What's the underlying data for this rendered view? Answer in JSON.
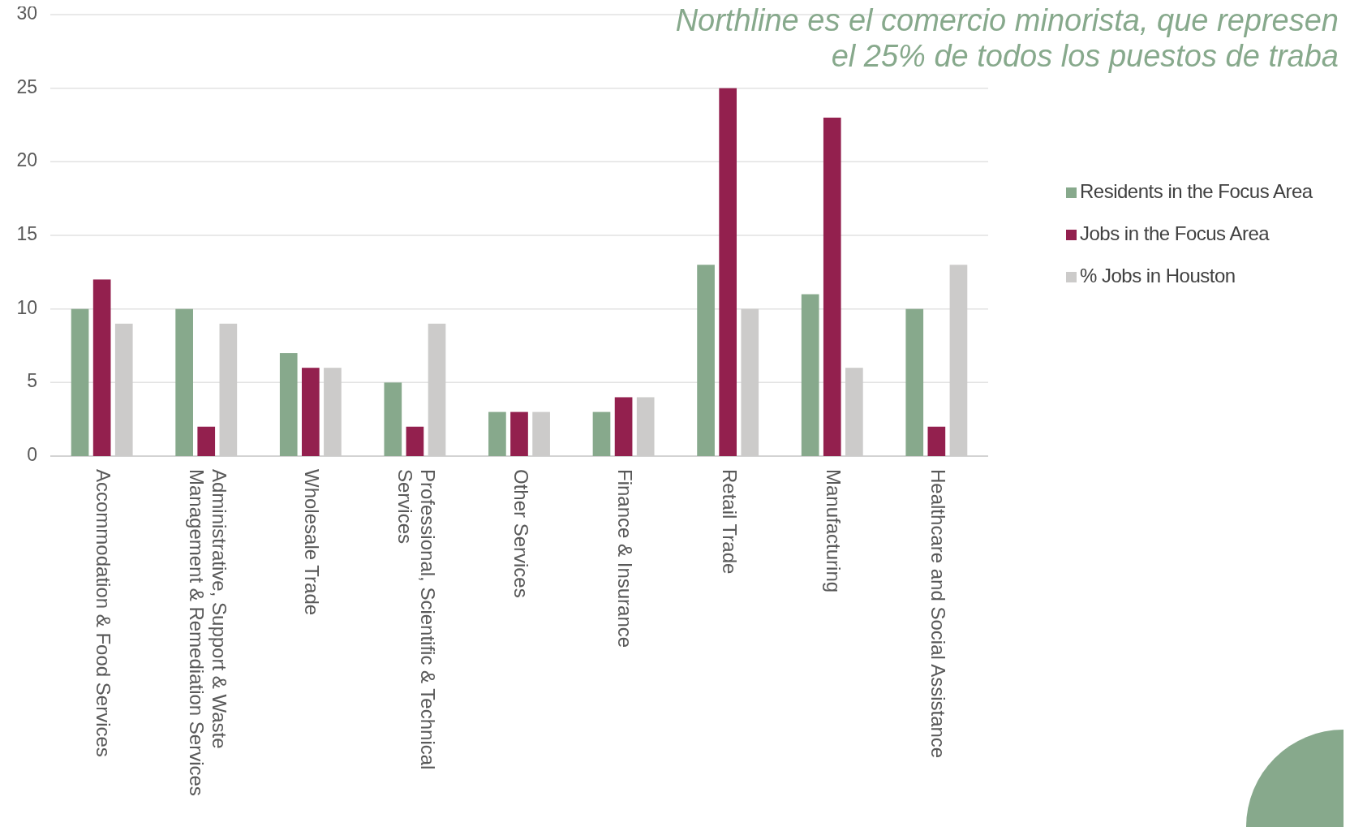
{
  "chart_data": {
    "type": "bar",
    "categories": [
      "Accommodation & Food Services",
      "Administrative, Support & Waste Management & Remediation Services",
      "Wholesale Trade",
      "Professional, Scientific & Technical Services",
      "Other Services",
      "Finance & Insurance",
      "Retail Trade",
      "Manufacturing",
      "Healthcare and Social Assistance"
    ],
    "series": [
      {
        "name": "Residents in the Focus Area",
        "color": "#87a98c",
        "values": [
          10,
          10,
          7,
          5,
          3,
          3,
          13,
          11,
          10
        ]
      },
      {
        "name": "Jobs in the Focus Area",
        "color": "#93204e",
        "values": [
          12,
          2,
          6,
          2,
          3,
          4,
          25,
          23,
          2
        ]
      },
      {
        "name": "% Jobs in Houston",
        "color": "#cccbca",
        "values": [
          9,
          9,
          6,
          9,
          3,
          4,
          10,
          6,
          13
        ]
      }
    ],
    "ylim": [
      0,
      30
    ],
    "yticks": [
      0,
      5,
      10,
      15,
      20,
      25,
      30
    ],
    "grid": "y",
    "legend": "right",
    "annotations": [
      "Northline es el comercio minorista, que represen",
      "el 25% de todos los puestos de traba"
    ]
  }
}
